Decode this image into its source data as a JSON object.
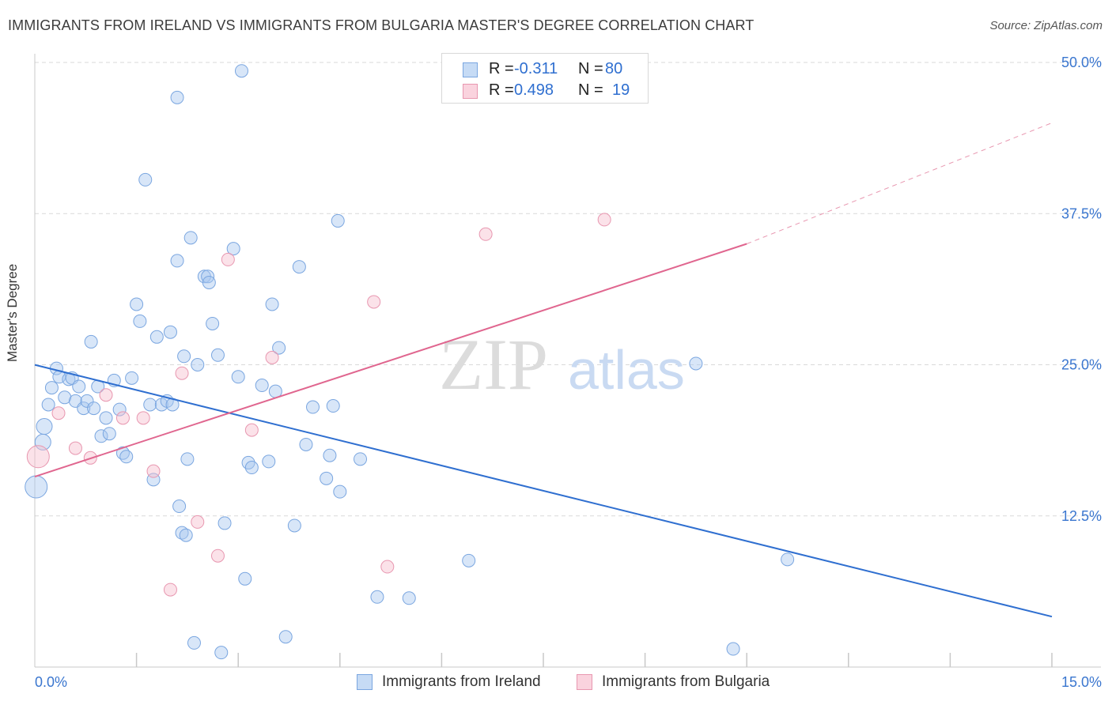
{
  "title": "IMMIGRANTS FROM IRELAND VS IMMIGRANTS FROM BULGARIA MASTER'S DEGREE CORRELATION CHART",
  "source": "Source: ZipAtlas.com",
  "watermark": {
    "zip": "ZIP",
    "atlas": "atlas"
  },
  "legend": {
    "r_label": "R =",
    "n_label": "N =",
    "rows": [
      {
        "r": "-0.311",
        "n": "80",
        "color": "#a9c8f0",
        "border": "#7aa6e0"
      },
      {
        "r": "0.498",
        "n": "19",
        "color": "#f7c0cf",
        "border": "#e897b0"
      }
    ]
  },
  "bottom_legend": [
    {
      "label": "Immigrants from Ireland",
      "color": "#a9c8f0",
      "border": "#7aa6e0"
    },
    {
      "label": "Immigrants from Bulgaria",
      "color": "#f7c0cf",
      "border": "#e897b0"
    }
  ],
  "chart_data": {
    "type": "scatter",
    "title": "IMMIGRANTS FROM IRELAND VS IMMIGRANTS FROM BULGARIA MASTER'S DEGREE CORRELATION CHART",
    "xlabel": "",
    "ylabel": "Master's Degree",
    "x_tick_labels": [
      "0.0%",
      "15.0%"
    ],
    "y_tick_labels": [
      "50.0%",
      "37.5%",
      "25.0%",
      "12.5%"
    ],
    "y_ticks": [
      50.0,
      37.5,
      25.0,
      12.5
    ],
    "xlim": [
      0,
      15
    ],
    "ylim": [
      0,
      50
    ],
    "grid": true,
    "legend_position": "top-center",
    "colors": {
      "ireland": "#2f6fd0",
      "bulgaria": "#e0668f"
    },
    "series": [
      {
        "name": "Immigrants from Ireland",
        "color": "#2f6fd0",
        "trend": {
          "x0": 0,
          "y0": 24.99,
          "x1": 15,
          "y1": 4.17
        },
        "points": [
          [
            0.02,
            14.9,
            3
          ],
          [
            0.14,
            19.9,
            2
          ],
          [
            0.12,
            18.6,
            2
          ],
          [
            0.2,
            21.7,
            1
          ],
          [
            0.25,
            23.1,
            1
          ],
          [
            0.32,
            24.7,
            1
          ],
          [
            0.36,
            24.0,
            1
          ],
          [
            0.44,
            22.3,
            1
          ],
          [
            0.5,
            23.8,
            1
          ],
          [
            0.55,
            23.9,
            1
          ],
          [
            0.6,
            22.0,
            1
          ],
          [
            0.65,
            23.2,
            1
          ],
          [
            0.72,
            21.4,
            1
          ],
          [
            0.77,
            22.0,
            1
          ],
          [
            0.83,
            26.9,
            1
          ],
          [
            0.87,
            21.4,
            1
          ],
          [
            0.93,
            23.2,
            1
          ],
          [
            0.98,
            19.1,
            1
          ],
          [
            1.05,
            20.6,
            1
          ],
          [
            1.1,
            19.3,
            1
          ],
          [
            1.17,
            23.7,
            1
          ],
          [
            1.25,
            21.3,
            1
          ],
          [
            1.3,
            17.7,
            1
          ],
          [
            1.35,
            17.4,
            1
          ],
          [
            1.43,
            23.9,
            1
          ],
          [
            1.5,
            30.0,
            1
          ],
          [
            1.55,
            28.6,
            1
          ],
          [
            1.63,
            40.3,
            1
          ],
          [
            1.7,
            21.7,
            1
          ],
          [
            1.75,
            15.5,
            1
          ],
          [
            1.8,
            27.3,
            1
          ],
          [
            1.87,
            21.7,
            1
          ],
          [
            1.95,
            22.0,
            1
          ],
          [
            2.0,
            27.7,
            1
          ],
          [
            2.03,
            21.7,
            1
          ],
          [
            2.1,
            47.1,
            1
          ],
          [
            2.1,
            33.6,
            1
          ],
          [
            2.13,
            13.3,
            1
          ],
          [
            2.17,
            11.1,
            1
          ],
          [
            2.2,
            25.7,
            1
          ],
          [
            2.23,
            10.9,
            1
          ],
          [
            2.25,
            17.2,
            1
          ],
          [
            2.3,
            35.5,
            1
          ],
          [
            2.35,
            2.0,
            1
          ],
          [
            2.4,
            25.0,
            1
          ],
          [
            2.5,
            32.3,
            1
          ],
          [
            2.55,
            32.3,
            1
          ],
          [
            2.57,
            31.8,
            1
          ],
          [
            2.62,
            28.4,
            1
          ],
          [
            2.7,
            25.8,
            1
          ],
          [
            2.75,
            1.2,
            1
          ],
          [
            2.8,
            11.9,
            1
          ],
          [
            2.93,
            34.6,
            1
          ],
          [
            3.0,
            24.0,
            1
          ],
          [
            3.05,
            49.3,
            1
          ],
          [
            3.1,
            7.3,
            1
          ],
          [
            3.15,
            16.9,
            1
          ],
          [
            3.2,
            16.5,
            1
          ],
          [
            3.35,
            23.3,
            1
          ],
          [
            3.45,
            17.0,
            1
          ],
          [
            3.5,
            30.0,
            1
          ],
          [
            3.55,
            22.8,
            1
          ],
          [
            3.6,
            26.4,
            1
          ],
          [
            3.7,
            2.5,
            1
          ],
          [
            3.83,
            11.7,
            1
          ],
          [
            3.9,
            33.1,
            1
          ],
          [
            4.0,
            18.4,
            1
          ],
          [
            4.1,
            21.5,
            1
          ],
          [
            4.3,
            15.6,
            1
          ],
          [
            4.35,
            17.5,
            1
          ],
          [
            4.4,
            21.6,
            1
          ],
          [
            4.47,
            36.9,
            1
          ],
          [
            4.5,
            14.5,
            1
          ],
          [
            4.8,
            17.2,
            1
          ],
          [
            5.05,
            5.8,
            1
          ],
          [
            5.52,
            5.7,
            1
          ],
          [
            6.4,
            8.8,
            1
          ],
          [
            9.75,
            25.1,
            1
          ],
          [
            10.3,
            1.5,
            1
          ],
          [
            11.1,
            8.9,
            1
          ]
        ]
      },
      {
        "name": "Immigrants from Bulgaria",
        "color": "#e0668f",
        "trend": {
          "x0": 0,
          "y0": 15.75,
          "x1": 10.5,
          "y1": 35.0,
          "dash_x1": 15,
          "dash_y1": 45.0
        },
        "points": [
          [
            0.05,
            17.4,
            3
          ],
          [
            0.35,
            21.0,
            1
          ],
          [
            0.6,
            18.1,
            1
          ],
          [
            0.82,
            17.3,
            1
          ],
          [
            1.05,
            22.5,
            1
          ],
          [
            1.3,
            20.6,
            1
          ],
          [
            1.6,
            20.6,
            1
          ],
          [
            1.75,
            16.2,
            1
          ],
          [
            2.0,
            6.4,
            1
          ],
          [
            2.17,
            24.3,
            1
          ],
          [
            2.4,
            12.0,
            1
          ],
          [
            2.7,
            9.2,
            1
          ],
          [
            2.85,
            33.7,
            1
          ],
          [
            3.2,
            19.6,
            1
          ],
          [
            3.5,
            25.6,
            1
          ],
          [
            5.0,
            30.2,
            1
          ],
          [
            5.2,
            8.3,
            1
          ],
          [
            6.65,
            35.8,
            1
          ],
          [
            8.4,
            37.0,
            1
          ]
        ]
      }
    ]
  }
}
